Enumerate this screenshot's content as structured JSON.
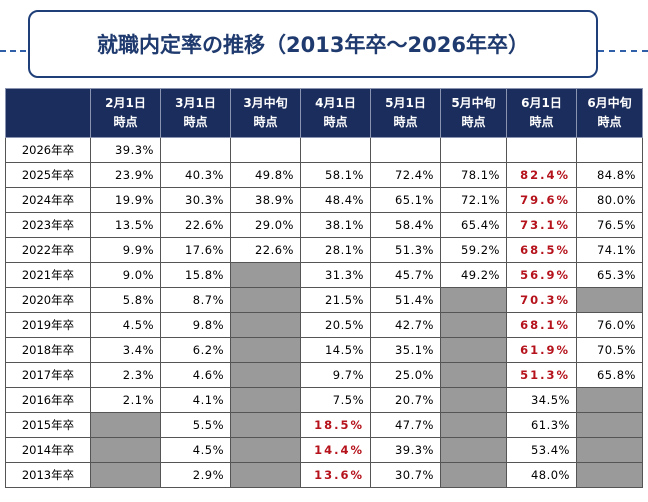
{
  "header": {
    "title": "就職内定率の推移（2013年卒～2026年卒）"
  },
  "table": {
    "highlight_color": "#b5121b",
    "columns": [
      "2月1日\n時点",
      "3月1日\n時点",
      "3月中旬\n時点",
      "4月1日\n時点",
      "5月1日\n時点",
      "5月中旬\n時点",
      "6月1日\n時点",
      "6月中旬\n時点"
    ],
    "rows": [
      {
        "label": "2026年卒",
        "cells": [
          {
            "text": "39.3%"
          }
        ]
      },
      {
        "label": "2025年卒",
        "cells": [
          {
            "text": "23.9%"
          },
          {
            "text": "40.3%"
          },
          {
            "text": "49.8%"
          },
          {
            "text": "58.1%"
          },
          {
            "text": "72.4%"
          },
          {
            "text": "78.1%"
          },
          {
            "text": "82.4%",
            "highlight": true
          },
          {
            "text": "84.8%"
          }
        ]
      },
      {
        "label": "2024年卒",
        "cells": [
          {
            "text": "19.9%"
          },
          {
            "text": "30.3%"
          },
          {
            "text": "38.9%"
          },
          {
            "text": "48.4%"
          },
          {
            "text": "65.1%"
          },
          {
            "text": "72.1%"
          },
          {
            "text": "79.6%",
            "highlight": true
          },
          {
            "text": "80.0%"
          }
        ]
      },
      {
        "label": "2023年卒",
        "cells": [
          {
            "text": "13.5%"
          },
          {
            "text": "22.6%"
          },
          {
            "text": "29.0%"
          },
          {
            "text": "38.1%"
          },
          {
            "text": "58.4%"
          },
          {
            "text": "65.4%"
          },
          {
            "text": "73.1%",
            "highlight": true
          },
          {
            "text": "76.5%"
          }
        ]
      },
      {
        "label": "2022年卒",
        "cells": [
          {
            "text": "9.9%"
          },
          {
            "text": "17.6%"
          },
          {
            "text": "22.6%"
          },
          {
            "text": "28.1%"
          },
          {
            "text": "51.3%"
          },
          {
            "text": "59.2%"
          },
          {
            "text": "68.5%",
            "highlight": true
          },
          {
            "text": "74.1%"
          }
        ]
      },
      {
        "label": "2021年卒",
        "cells": [
          {
            "text": "9.0%"
          },
          {
            "text": "15.8%"
          },
          null,
          {
            "text": "31.3%"
          },
          {
            "text": "45.7%"
          },
          {
            "text": "49.2%"
          },
          {
            "text": "56.9%",
            "highlight": true
          },
          {
            "text": "65.3%"
          }
        ]
      },
      {
        "label": "2020年卒",
        "cells": [
          {
            "text": "5.8%"
          },
          {
            "text": "8.7%"
          },
          null,
          {
            "text": "21.5%"
          },
          {
            "text": "51.4%"
          },
          null,
          {
            "text": "70.3%",
            "highlight": true
          },
          null
        ]
      },
      {
        "label": "2019年卒",
        "cells": [
          {
            "text": "4.5%"
          },
          {
            "text": "9.8%"
          },
          null,
          {
            "text": "20.5%"
          },
          {
            "text": "42.7%"
          },
          null,
          {
            "text": "68.1%",
            "highlight": true
          },
          {
            "text": "76.0%"
          }
        ]
      },
      {
        "label": "2018年卒",
        "cells": [
          {
            "text": "3.4%"
          },
          {
            "text": "6.2%"
          },
          null,
          {
            "text": "14.5%"
          },
          {
            "text": "35.1%"
          },
          null,
          {
            "text": "61.9%",
            "highlight": true
          },
          {
            "text": "70.5%"
          }
        ]
      },
      {
        "label": "2017年卒",
        "cells": [
          {
            "text": "2.3%"
          },
          {
            "text": "4.6%"
          },
          null,
          {
            "text": "9.7%"
          },
          {
            "text": "25.0%"
          },
          null,
          {
            "text": "51.3%",
            "highlight": true
          },
          {
            "text": "65.8%"
          }
        ]
      },
      {
        "label": "2016年卒",
        "cells": [
          {
            "text": "2.1%"
          },
          {
            "text": "4.1%"
          },
          null,
          {
            "text": "7.5%"
          },
          {
            "text": "20.7%"
          },
          null,
          {
            "text": "34.5%"
          },
          null
        ]
      },
      {
        "label": "2015年卒",
        "cells": [
          null,
          {
            "text": "5.5%"
          },
          null,
          {
            "text": "18.5%",
            "highlight": true
          },
          {
            "text": "47.7%"
          },
          null,
          {
            "text": "61.3%"
          },
          null
        ]
      },
      {
        "label": "2014年卒",
        "cells": [
          null,
          {
            "text": "4.5%"
          },
          null,
          {
            "text": "14.4%",
            "highlight": true
          },
          {
            "text": "39.3%"
          },
          null,
          {
            "text": "53.4%"
          },
          null
        ]
      },
      {
        "label": "2013年卒",
        "cells": [
          null,
          {
            "text": "2.9%"
          },
          null,
          {
            "text": "13.6%",
            "highlight": true
          },
          {
            "text": "30.7%"
          },
          null,
          {
            "text": "48.0%"
          },
          null
        ]
      }
    ]
  }
}
